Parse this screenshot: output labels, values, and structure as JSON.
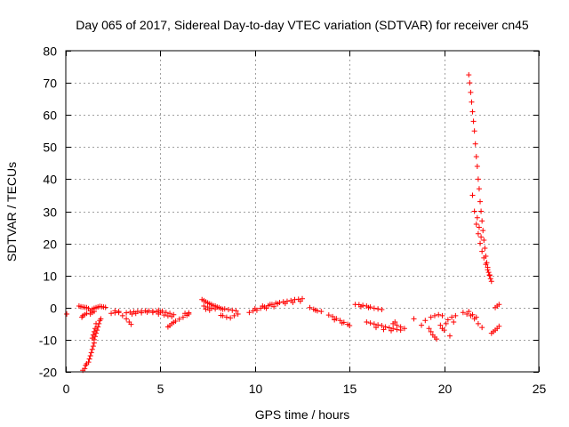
{
  "chart_data": {
    "type": "scatter",
    "title": "Day 065 of 2017, Sidereal Day-to-day VTEC variation (SDTVAR) for receiver cn45",
    "xlabel": "GPS time / hours",
    "ylabel": "SDTVAR / TECUs",
    "xlim": [
      0,
      25
    ],
    "ylim": [
      -20,
      80
    ],
    "xticks": [
      0,
      5,
      10,
      15,
      20,
      25
    ],
    "yticks": [
      -20,
      -10,
      0,
      10,
      20,
      30,
      40,
      50,
      60,
      70,
      80
    ],
    "grid": true,
    "marker": "+",
    "color": "#ff0000",
    "series": [
      {
        "name": "cn45",
        "points": [
          [
            0.05,
            -2
          ],
          [
            0.7,
            0.5
          ],
          [
            0.8,
            0.3
          ],
          [
            0.9,
            0.2
          ],
          [
            1.0,
            0.1
          ],
          [
            1.1,
            0.0
          ],
          [
            1.2,
            -0.3
          ],
          [
            0.85,
            -3
          ],
          [
            0.9,
            -2.5
          ],
          [
            1.0,
            -2.2
          ],
          [
            1.1,
            -1.8
          ],
          [
            0.9,
            -19.5
          ],
          [
            1.0,
            -19
          ],
          [
            1.05,
            -18
          ],
          [
            1.1,
            -17.5
          ],
          [
            1.2,
            -17
          ],
          [
            1.25,
            -16
          ],
          [
            1.3,
            -15
          ],
          [
            1.35,
            -14
          ],
          [
            1.4,
            -13
          ],
          [
            1.45,
            -12
          ],
          [
            1.5,
            -11
          ],
          [
            1.5,
            -10
          ],
          [
            1.55,
            -9
          ],
          [
            1.6,
            -8
          ],
          [
            1.65,
            -7
          ],
          [
            1.7,
            -6
          ],
          [
            1.75,
            -5
          ],
          [
            1.8,
            -4
          ],
          [
            1.85,
            -3.5
          ],
          [
            1.4,
            -9.5
          ],
          [
            1.45,
            -8.5
          ],
          [
            1.5,
            -7.5
          ],
          [
            1.55,
            -6.5
          ],
          [
            1.6,
            -5
          ],
          [
            1.3,
            -1
          ],
          [
            1.4,
            -0.5
          ],
          [
            1.5,
            -0.2
          ],
          [
            1.6,
            0
          ],
          [
            1.7,
            0.2
          ],
          [
            1.8,
            0.4
          ],
          [
            1.9,
            0.3
          ],
          [
            2.0,
            0.2
          ],
          [
            2.1,
            0.1
          ],
          [
            1.3,
            -2
          ],
          [
            1.4,
            -1.5
          ],
          [
            1.5,
            -1.2
          ],
          [
            2.6,
            -1
          ],
          [
            2.8,
            -1.5
          ],
          [
            3.0,
            -2.5
          ],
          [
            3.2,
            -3.5
          ],
          [
            3.35,
            -4.5
          ],
          [
            3.45,
            -5.2
          ],
          [
            2.4,
            -1.8
          ],
          [
            2.6,
            -1.6
          ],
          [
            2.8,
            -1.2
          ],
          [
            3.2,
            -1.6
          ],
          [
            3.4,
            -1.4
          ],
          [
            3.6,
            -1.3
          ],
          [
            3.8,
            -1.2
          ],
          [
            4.0,
            -1.1
          ],
          [
            4.2,
            -1.0
          ],
          [
            4.4,
            -1.0
          ],
          [
            4.6,
            -1.1
          ],
          [
            4.8,
            -1.3
          ],
          [
            5.0,
            -1.5
          ],
          [
            3.5,
            -2
          ],
          [
            3.7,
            -1.8
          ],
          [
            4.0,
            -1.6
          ],
          [
            4.3,
            -1.4
          ],
          [
            4.6,
            -1.5
          ],
          [
            4.9,
            -2
          ],
          [
            4.9,
            -0.8
          ],
          [
            5.1,
            -1.1
          ],
          [
            5.3,
            -1.5
          ],
          [
            5.5,
            -1.8
          ],
          [
            5.7,
            -2.2
          ],
          [
            5.2,
            -2.3
          ],
          [
            5.4,
            -2.6
          ],
          [
            5.6,
            -2.8
          ],
          [
            5.4,
            -6
          ],
          [
            5.5,
            -5.6
          ],
          [
            5.6,
            -5
          ],
          [
            5.7,
            -4.6
          ],
          [
            5.8,
            -4.2
          ],
          [
            6.0,
            -3.6
          ],
          [
            6.2,
            -3
          ],
          [
            6.4,
            -2.4
          ],
          [
            6.5,
            -2
          ],
          [
            6.3,
            -1.8
          ],
          [
            6.5,
            -1.6
          ],
          [
            7.2,
            2.5
          ],
          [
            7.3,
            2.2
          ],
          [
            7.4,
            1.8
          ],
          [
            7.5,
            1.5
          ],
          [
            7.6,
            1.2
          ],
          [
            7.7,
            1.0
          ],
          [
            7.8,
            0.6
          ],
          [
            7.9,
            0.5
          ],
          [
            8.0,
            0.2
          ],
          [
            8.1,
            0
          ],
          [
            8.2,
            -0.3
          ],
          [
            8.3,
            -0.5
          ],
          [
            7.3,
            0.5
          ],
          [
            7.5,
            0.2
          ],
          [
            7.7,
            -0.2
          ],
          [
            7.9,
            -0.4
          ],
          [
            7.4,
            -0.5
          ],
          [
            7.6,
            -0.8
          ],
          [
            8.4,
            -0.4
          ],
          [
            8.6,
            -0.6
          ],
          [
            8.8,
            -0.8
          ],
          [
            9.0,
            -1.0
          ],
          [
            8.3,
            -2.5
          ],
          [
            8.5,
            -3
          ],
          [
            8.7,
            -3.2
          ],
          [
            8.9,
            -2.5
          ],
          [
            9.1,
            -2
          ],
          [
            8.2,
            -2.4
          ],
          [
            9.7,
            -1.5
          ],
          [
            9.9,
            -1
          ],
          [
            10.1,
            -0.8
          ],
          [
            10.3,
            -0.2
          ],
          [
            10.5,
            0.2
          ],
          [
            10.7,
            0.6
          ],
          [
            10.9,
            1.0
          ],
          [
            11.1,
            1.4
          ],
          [
            11.3,
            1.6
          ],
          [
            11.5,
            1.8
          ],
          [
            11.7,
            2.0
          ],
          [
            11.9,
            2.2
          ],
          [
            12.1,
            2.5
          ],
          [
            12.3,
            2.6
          ],
          [
            12.5,
            2.8
          ],
          [
            10.0,
            -0.3
          ],
          [
            10.4,
            0.5
          ],
          [
            10.8,
            1.0
          ],
          [
            11.2,
            1.2
          ],
          [
            11.6,
            1.3
          ],
          [
            12.0,
            1.6
          ],
          [
            12.4,
            2.0
          ],
          [
            10.6,
            -0.2
          ],
          [
            11.0,
            0.3
          ],
          [
            12.9,
            0
          ],
          [
            13.1,
            -0.5
          ],
          [
            13.3,
            -1
          ],
          [
            13.5,
            -1.2
          ],
          [
            13.2,
            -0.8
          ],
          [
            13.9,
            -2.3
          ],
          [
            14.1,
            -2.8
          ],
          [
            14.3,
            -3.4
          ],
          [
            14.5,
            -4
          ],
          [
            14.7,
            -4.6
          ],
          [
            14.9,
            -5.2
          ],
          [
            15.0,
            -5.6
          ],
          [
            14.2,
            -3.8
          ],
          [
            14.6,
            -4.8
          ],
          [
            15.3,
            1
          ],
          [
            15.5,
            0.9
          ],
          [
            15.7,
            0.7
          ],
          [
            15.9,
            0.5
          ],
          [
            16.1,
            0.2
          ],
          [
            16.3,
            -0.2
          ],
          [
            16.5,
            -0.4
          ],
          [
            16.7,
            -0.6
          ],
          [
            15.6,
            0.3
          ],
          [
            16.0,
            0
          ],
          [
            15.9,
            -4.5
          ],
          [
            16.1,
            -4.8
          ],
          [
            16.3,
            -5.1
          ],
          [
            16.5,
            -5.4
          ],
          [
            16.7,
            -5.6
          ],
          [
            16.9,
            -6
          ],
          [
            17.1,
            -6.3
          ],
          [
            17.3,
            -6.5
          ],
          [
            17.5,
            -6.8
          ],
          [
            17.7,
            -7
          ],
          [
            16.4,
            -6.2
          ],
          [
            16.8,
            -6.8
          ],
          [
            17.2,
            -7.2
          ],
          [
            17.3,
            -5
          ],
          [
            17.5,
            -5.5
          ],
          [
            17.7,
            -6
          ],
          [
            17.9,
            -6.5
          ],
          [
            17.4,
            -4.5
          ],
          [
            18.4,
            -3.5
          ],
          [
            18.8,
            -5.5
          ],
          [
            19.0,
            -4
          ],
          [
            19.2,
            -6.5
          ],
          [
            19.3,
            -7.5
          ],
          [
            19.4,
            -8.5
          ],
          [
            19.5,
            -9.2
          ],
          [
            19.6,
            -9.8
          ],
          [
            19.3,
            -3
          ],
          [
            19.5,
            -2.5
          ],
          [
            19.7,
            -2.2
          ],
          [
            19.9,
            -2.5
          ],
          [
            19.8,
            -5.5
          ],
          [
            19.9,
            -6.5
          ],
          [
            20.0,
            -7
          ],
          [
            20.1,
            -5
          ],
          [
            20.2,
            -3.8
          ],
          [
            20.4,
            -3
          ],
          [
            20.6,
            -2.5
          ],
          [
            20.5,
            -4.5
          ],
          [
            20.3,
            -8.8
          ],
          [
            21.0,
            -1.5
          ],
          [
            21.2,
            -2
          ],
          [
            21.4,
            -2.5
          ],
          [
            21.6,
            -3.5
          ],
          [
            21.8,
            -5
          ],
          [
            22.0,
            -6.2
          ],
          [
            21.3,
            -1.2
          ],
          [
            21.5,
            -2.2
          ],
          [
            21.7,
            -3
          ],
          [
            22.5,
            -8
          ],
          [
            22.6,
            -7.5
          ],
          [
            22.7,
            -7
          ],
          [
            22.8,
            -6.5
          ],
          [
            22.9,
            -5.8
          ],
          [
            22.8,
            0.5
          ],
          [
            22.9,
            1
          ],
          [
            22.7,
            0
          ],
          [
            21.3,
            72.5
          ],
          [
            21.35,
            70
          ],
          [
            21.4,
            67
          ],
          [
            21.45,
            64
          ],
          [
            21.5,
            61
          ],
          [
            21.55,
            58
          ],
          [
            21.6,
            55
          ],
          [
            21.65,
            51
          ],
          [
            21.7,
            47
          ],
          [
            21.75,
            44
          ],
          [
            21.8,
            40
          ],
          [
            21.85,
            37
          ],
          [
            21.9,
            33
          ],
          [
            21.95,
            30
          ],
          [
            22.0,
            27
          ],
          [
            22.05,
            24
          ],
          [
            22.1,
            21
          ],
          [
            22.15,
            18.5
          ],
          [
            22.2,
            16
          ],
          [
            22.25,
            14
          ],
          [
            22.3,
            12.5
          ],
          [
            22.35,
            11
          ],
          [
            22.4,
            10
          ],
          [
            22.45,
            9
          ],
          [
            22.5,
            8.2
          ],
          [
            21.5,
            35
          ],
          [
            21.6,
            30
          ],
          [
            21.7,
            26
          ],
          [
            21.8,
            23
          ],
          [
            21.9,
            20
          ],
          [
            22.0,
            17.5
          ],
          [
            22.1,
            15.5
          ],
          [
            22.2,
            13.5
          ],
          [
            22.3,
            11.8
          ],
          [
            22.4,
            10.2
          ],
          [
            21.75,
            28
          ],
          [
            21.85,
            25
          ],
          [
            21.95,
            22
          ]
        ]
      }
    ]
  }
}
